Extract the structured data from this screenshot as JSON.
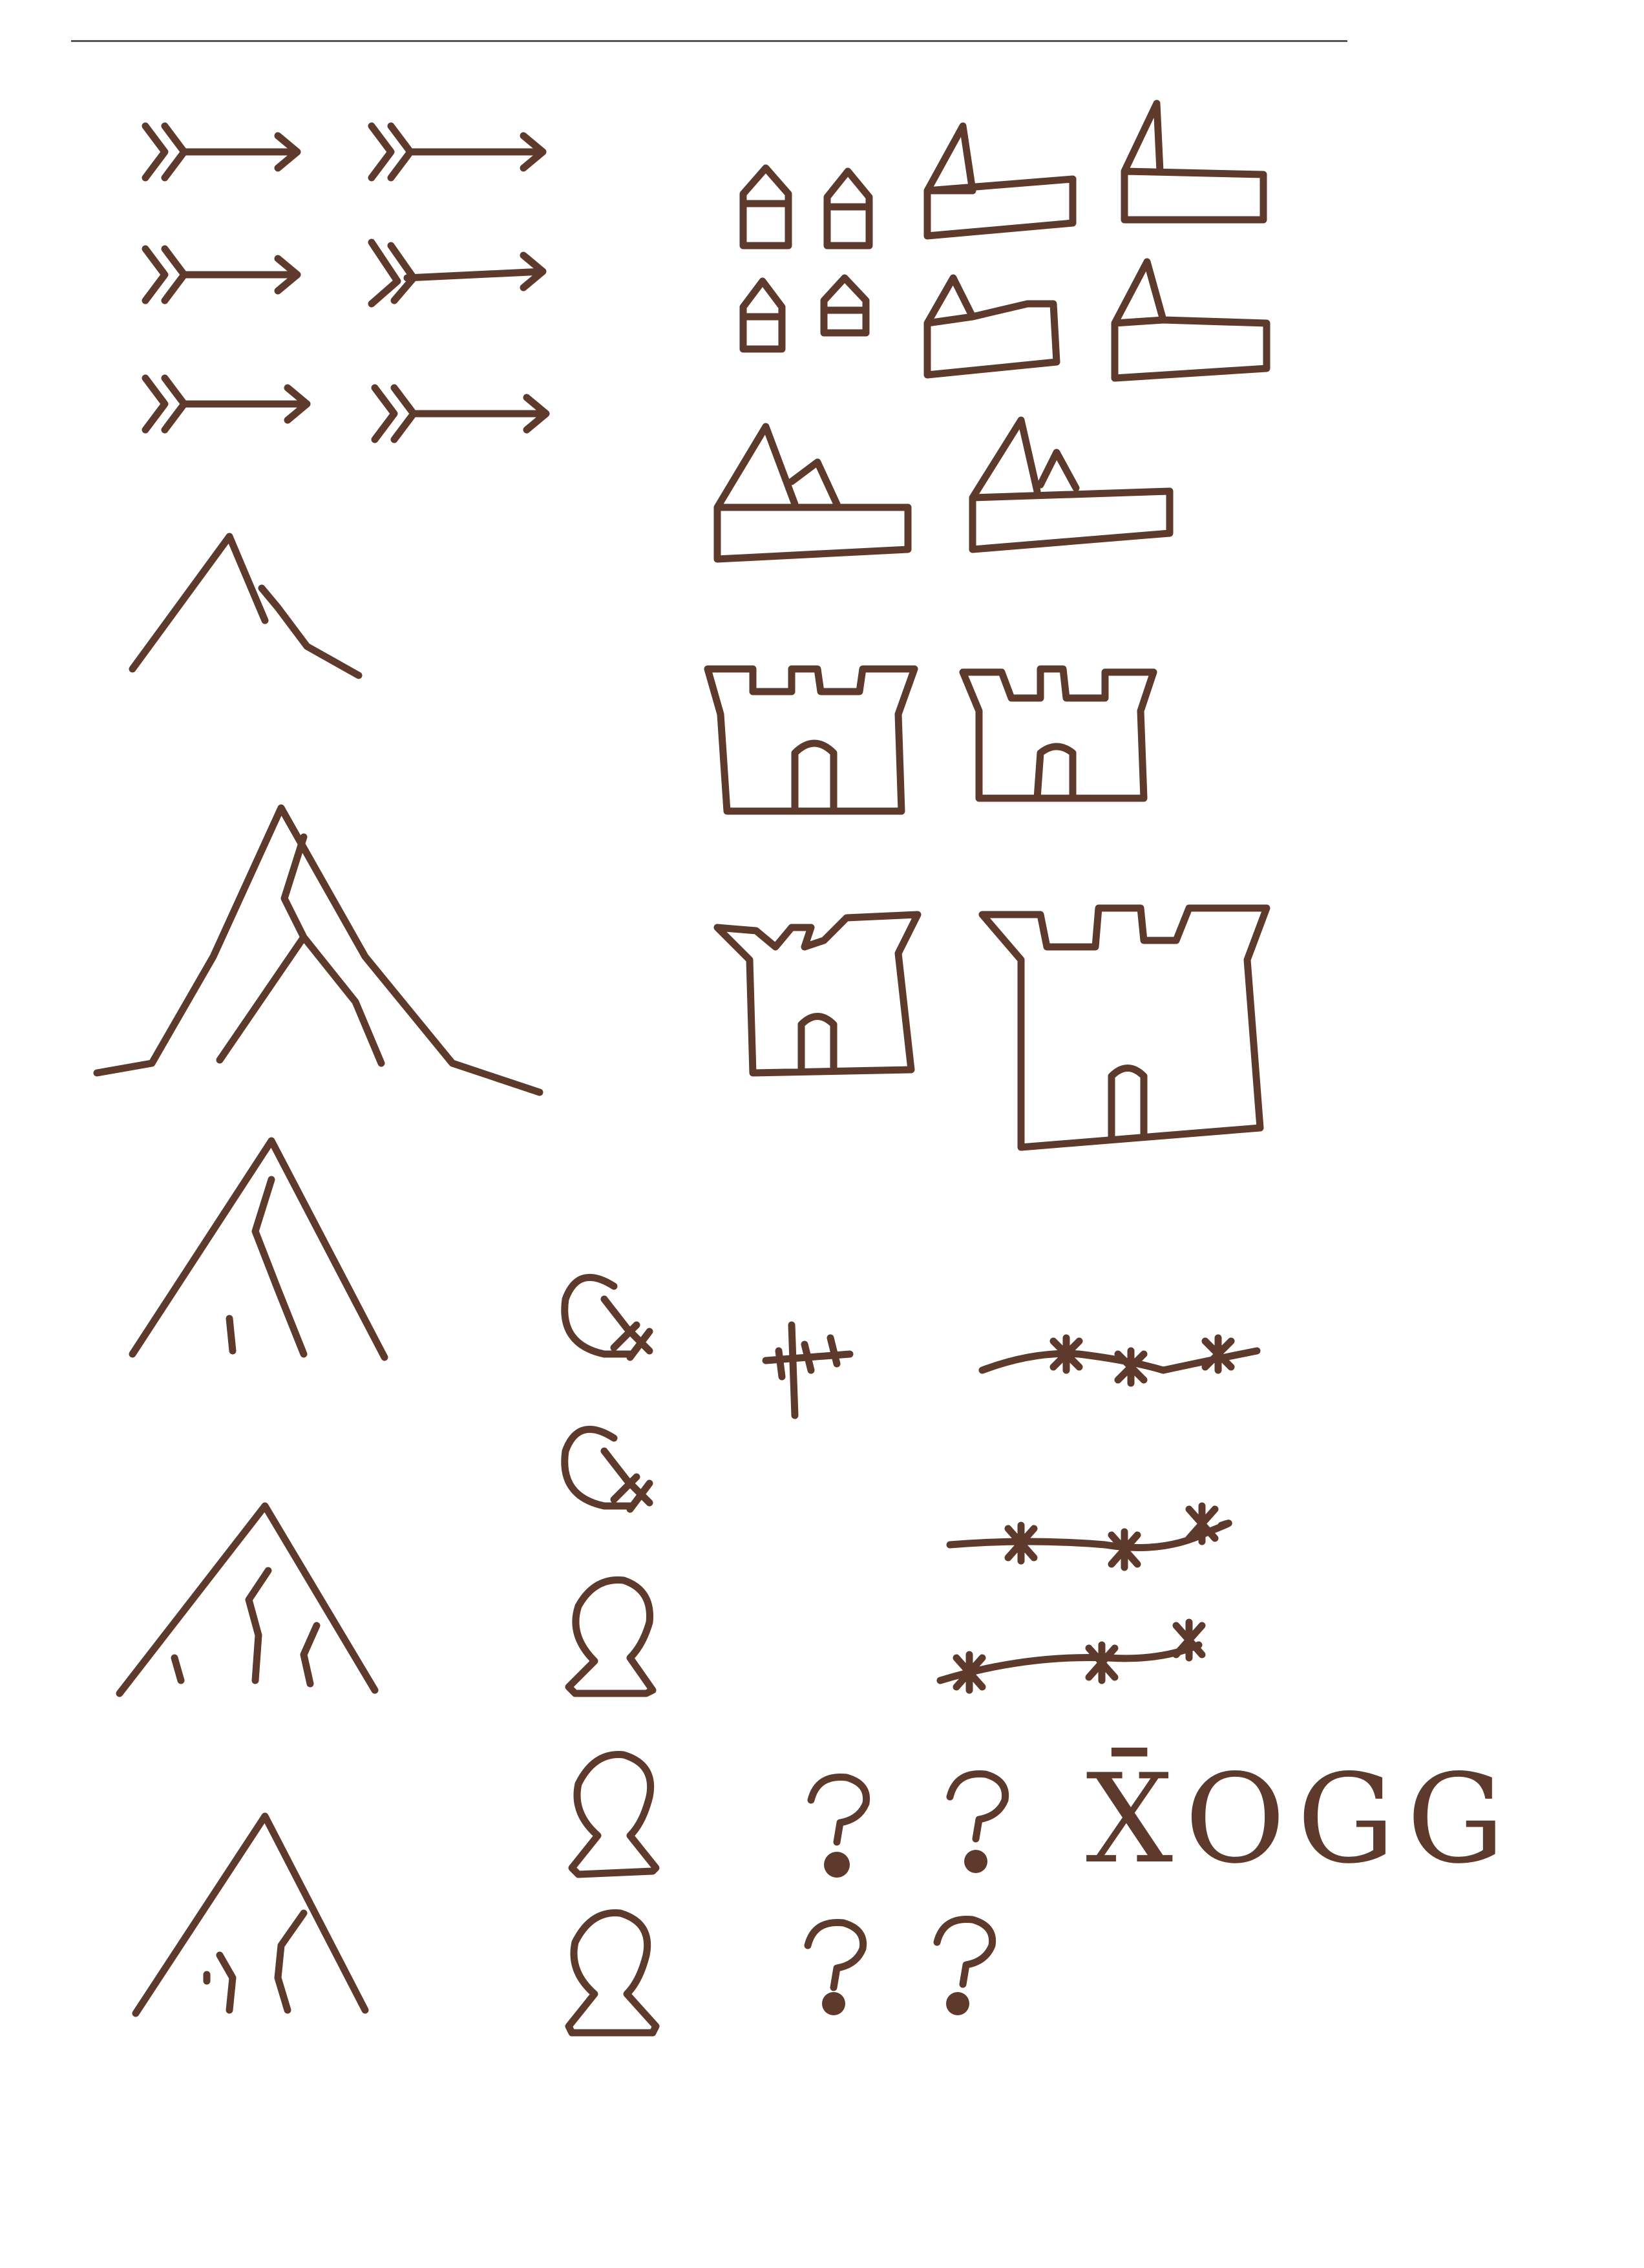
{
  "sheet": {
    "ink_color": "#5e3a2c",
    "paper_color": "#ffffff",
    "handwritten_note": "X̄OGG"
  },
  "symbols": {
    "arrows": {
      "icon": "arrow-icon",
      "count": 6
    },
    "towers": {
      "icon": "small-tower-icon",
      "count": 4
    },
    "churches": {
      "icon": "church-icon",
      "count": 4
    },
    "mountain_ranges": {
      "icon": "mountain-range-icon",
      "count": 2
    },
    "castles": {
      "icon": "castle-icon",
      "count": 4
    },
    "mountains": {
      "icon": "mountain-icon",
      "count": 5
    },
    "q_glyphs": {
      "icon": "q-glyph-icon",
      "count": 2
    },
    "keyholes": {
      "icon": "keyhole-icon",
      "count": 3
    },
    "question_marks": {
      "icon": "question-mark-icon",
      "count": 4
    },
    "crosses": {
      "icon": "cross-icon",
      "count": 1
    },
    "barbed_lines": {
      "icon": "barbed-line-icon",
      "count": 3
    }
  }
}
